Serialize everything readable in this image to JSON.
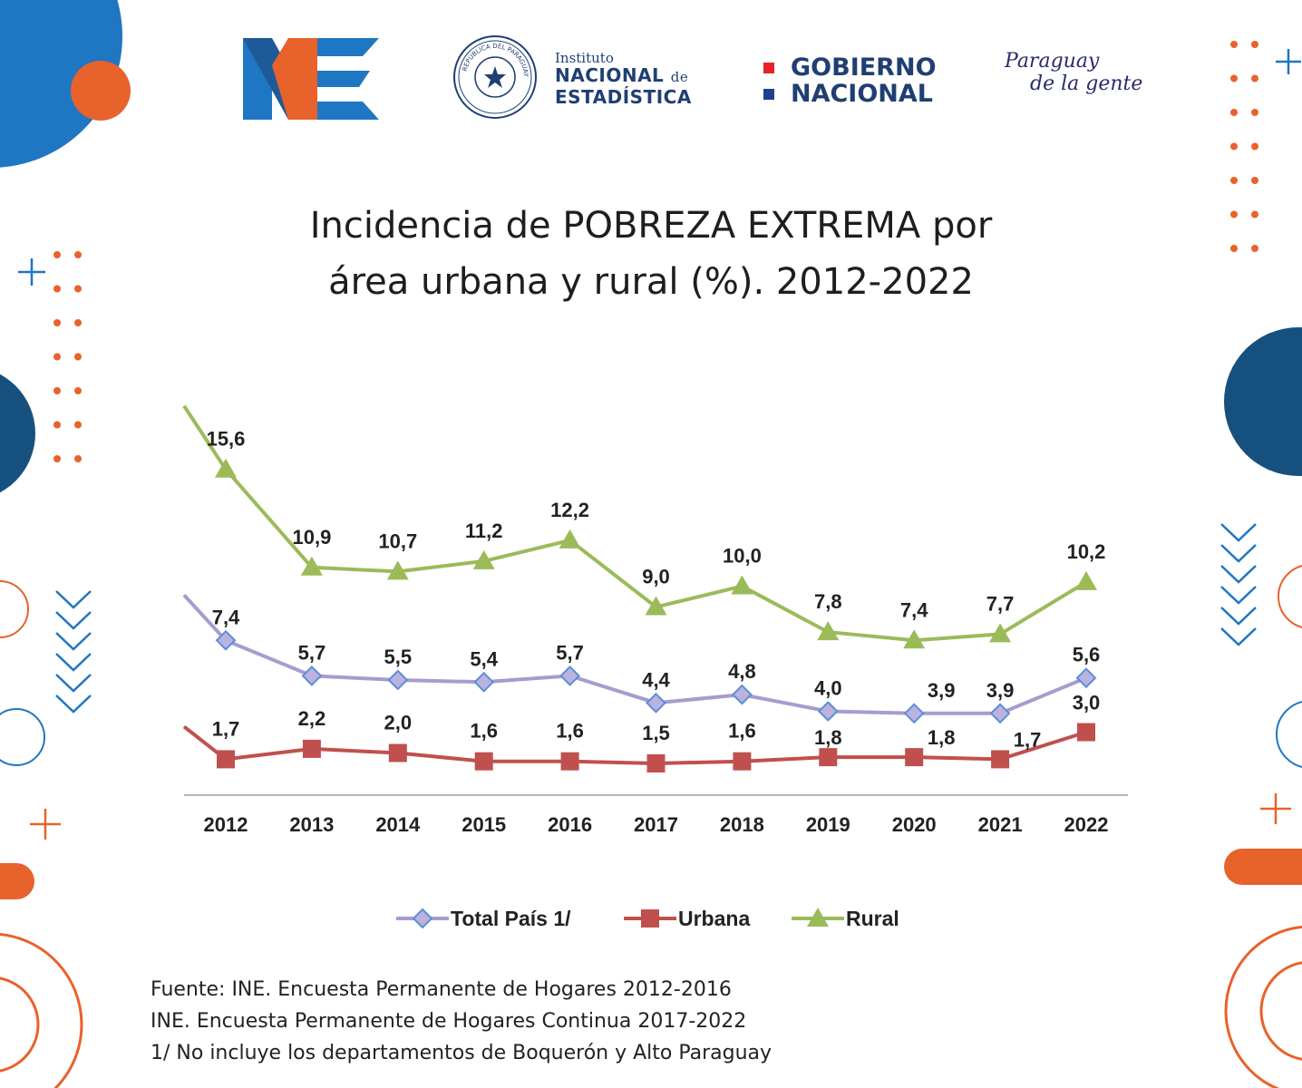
{
  "logos": {
    "ine_mark": "INE",
    "institute_small": "Instituto",
    "institute_line1": "NACIONAL",
    "institute_de": "de",
    "institute_line2": "ESTADÍSTICA",
    "seal_text": "REPÚBLICA DEL PARAGUAY",
    "gov_line1": "GOBIERNO",
    "gov_line2": "NACIONAL",
    "slogan_line1": "Paraguay",
    "slogan_line2": "de la gente"
  },
  "colors": {
    "total": "#a89bd1",
    "urbana": "#c0504d",
    "rural": "#9bbb59",
    "orange": "#e8622c",
    "blue": "#1f76c2",
    "navy": "#16507f"
  },
  "chart_data": {
    "type": "line",
    "title_line1": "Incidencia de POBREZA EXTREMA por",
    "title_line2": "área urbana y rural (%). 2012-2022",
    "categories": [
      "2012",
      "2013",
      "2014",
      "2015",
      "2016",
      "2017",
      "2018",
      "2019",
      "2020",
      "2021",
      "2022"
    ],
    "ylim": [
      0,
      17
    ],
    "grid": false,
    "legend_position": "bottom",
    "series": [
      {
        "name": "Total País 1/",
        "marker": "diamond",
        "values": [
          7.4,
          5.7,
          5.5,
          5.4,
          5.7,
          4.4,
          4.8,
          4.0,
          3.9,
          3.9,
          5.6
        ],
        "labels": [
          "7,4",
          "5,7",
          "5,5",
          "5,4",
          "5,7",
          "4,4",
          "4,8",
          "4,0",
          "3,9",
          "3,9",
          "5,6"
        ]
      },
      {
        "name": "Urbana",
        "marker": "square",
        "values": [
          1.7,
          2.2,
          2.0,
          1.6,
          1.6,
          1.5,
          1.6,
          1.8,
          1.8,
          1.7,
          3.0
        ],
        "labels": [
          "1,7",
          "2,2",
          "2,0",
          "1,6",
          "1,6",
          "1,5",
          "1,6",
          "1,8",
          "1,8",
          "1,7",
          "3,0"
        ]
      },
      {
        "name": "Rural",
        "marker": "triangle",
        "values": [
          15.6,
          10.9,
          10.7,
          11.2,
          12.2,
          9.0,
          10.0,
          7.8,
          7.4,
          7.7,
          10.2
        ],
        "labels": [
          "15,6",
          "10,9",
          "10,7",
          "11,2",
          "12,2",
          "9,0",
          "10,0",
          "7,8",
          "7,4",
          "7,7",
          "10,2"
        ]
      }
    ]
  },
  "source": {
    "line1": "Fuente: INE. Encuesta Permanente de Hogares 2012-2016",
    "line2": "INE. Encuesta Permanente de Hogares Continua 2017-2022",
    "line3": "1/ No incluye los departamentos de Boquerón y Alto Paraguay"
  }
}
